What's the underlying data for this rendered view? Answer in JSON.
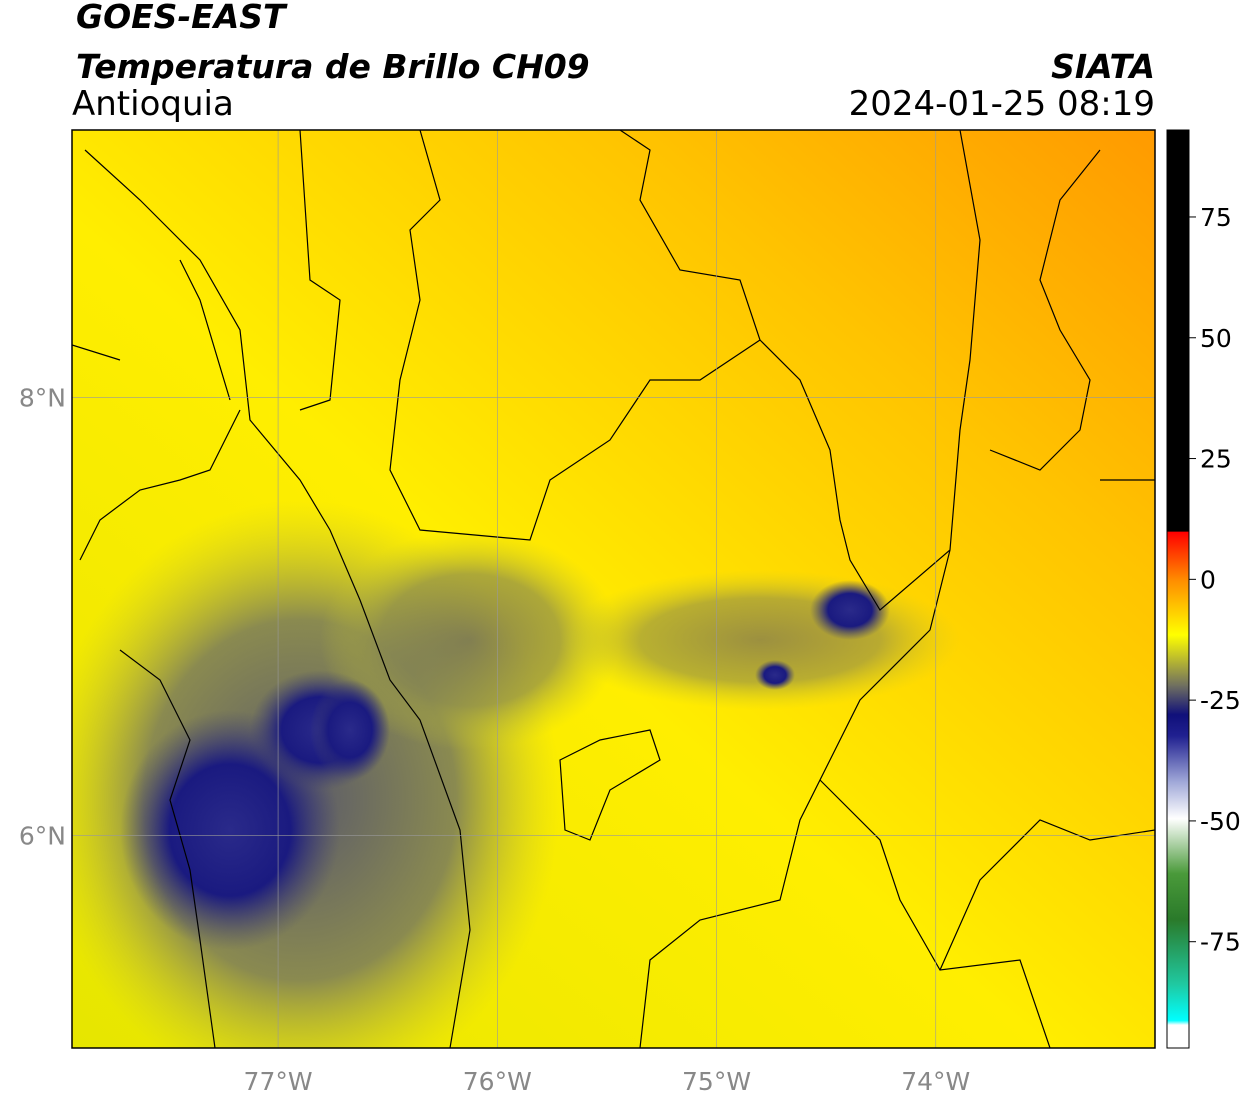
{
  "header": {
    "title": "GOES-EAST",
    "subtitle": "Temperatura de Brillo CH09",
    "region": "Antioquia",
    "source": "SIATA",
    "datetime": "2024-01-25 08:19"
  },
  "map": {
    "xlim": [
      -77.94,
      -73.0
    ],
    "ylim": [
      5.03,
      9.22
    ],
    "xticks": [
      {
        "value": -77,
        "label": "77°W"
      },
      {
        "value": -76,
        "label": "76°W"
      },
      {
        "value": -75,
        "label": "75°W"
      },
      {
        "value": -74,
        "label": "74°W"
      }
    ],
    "yticks": [
      {
        "value": 8,
        "label": "8°N"
      },
      {
        "value": 6,
        "label": "6°N"
      }
    ],
    "grid": true
  },
  "colorbar": {
    "lim": [
      -97,
      93
    ],
    "ticks": [
      75,
      50,
      25,
      0,
      -25,
      -50,
      -75
    ]
  }
}
